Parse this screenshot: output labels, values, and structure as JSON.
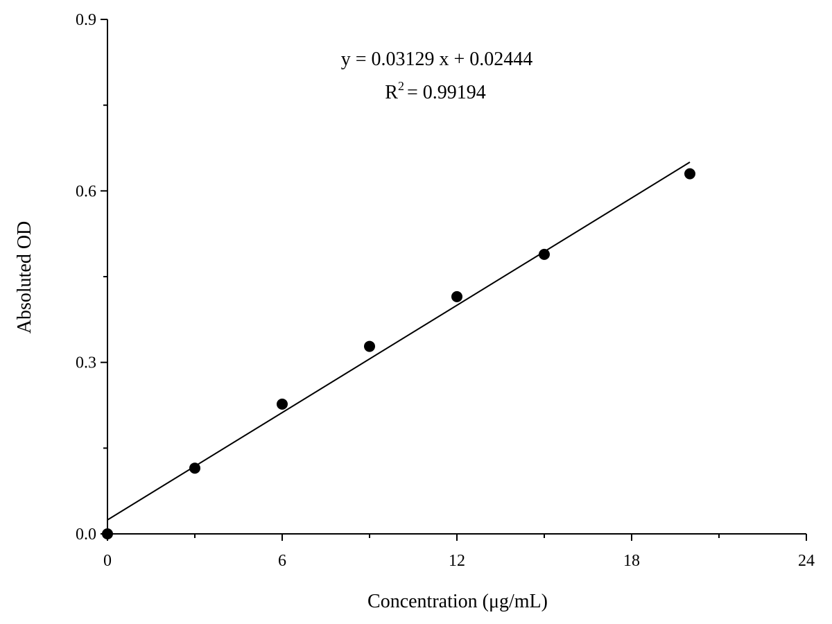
{
  "chart_data": {
    "type": "scatter",
    "xlabel": "Concentration (μg/mL)",
    "ylabel": "Absoluted OD",
    "xlim": [
      0,
      24
    ],
    "ylim": [
      0,
      0.9
    ],
    "xticks": [
      "0",
      "6",
      "12",
      "18",
      "24"
    ],
    "yticks": [
      "0.0",
      "0.3",
      "0.6",
      "0.9"
    ],
    "grid": false,
    "points": [
      {
        "x": 0,
        "y": 0.0
      },
      {
        "x": 3,
        "y": 0.115
      },
      {
        "x": 6,
        "y": 0.227
      },
      {
        "x": 9,
        "y": 0.328
      },
      {
        "x": 12,
        "y": 0.415
      },
      {
        "x": 15,
        "y": 0.489
      },
      {
        "x": 20,
        "y": 0.63
      }
    ],
    "fit": {
      "slope": 0.03129,
      "intercept": 0.02444,
      "x_range": [
        0,
        20
      ],
      "equation": "y = 0.03129 x + 0.02444",
      "r2_prefix": "R",
      "r2_superscript": "2",
      "r2_value": "= 0.99194"
    }
  }
}
